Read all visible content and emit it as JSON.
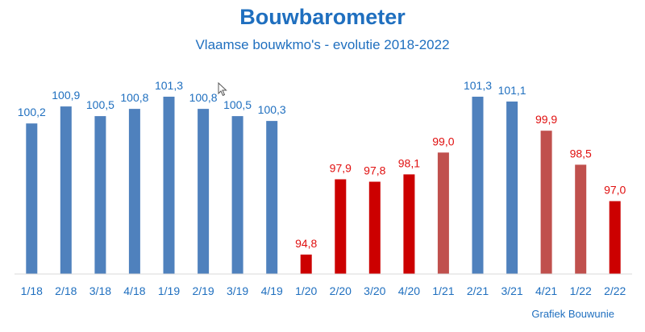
{
  "title": "Bouwbarometer",
  "subtitle": "Vlaamse bouwkmo's - evolutie 2018-2022",
  "credit": "Grafiek Bouwunie",
  "colors": {
    "blue": "#4f81bd",
    "red": "#cc0000",
    "muted_red": "#c0504d",
    "label_blue": "#1f6fbf",
    "label_red": "#e01010",
    "axis_label": "#1f6fbf"
  },
  "chart_data": {
    "type": "bar",
    "title": "Bouwbarometer",
    "subtitle": "Vlaamse bouwkmo's - evolutie 2018-2022",
    "categories": [
      "1/18",
      "2/18",
      "3/18",
      "4/18",
      "1/19",
      "2/19",
      "3/19",
      "4/19",
      "1/20",
      "2/20",
      "3/20",
      "4/20",
      "1/21",
      "2/21",
      "3/21",
      "4/21",
      "1/22",
      "2/22"
    ],
    "values": [
      100.2,
      100.9,
      100.5,
      100.8,
      101.3,
      100.8,
      100.5,
      100.3,
      94.8,
      97.9,
      97.8,
      98.1,
      99.0,
      101.3,
      101.1,
      99.9,
      98.5,
      97.0
    ],
    "labels": [
      "100,2",
      "100,9",
      "100,5",
      "100,8",
      "101,3",
      "100,8",
      "100,5",
      "100,3",
      "94,8",
      "97,9",
      "97,8",
      "98,1",
      "99,0",
      "101,3",
      "101,1",
      "99,9",
      "98,5",
      "97,0"
    ],
    "bar_colors": [
      "blue",
      "blue",
      "blue",
      "blue",
      "blue",
      "blue",
      "blue",
      "blue",
      "red",
      "red",
      "red",
      "red",
      "muted_red",
      "blue",
      "blue",
      "muted_red",
      "muted_red",
      "red"
    ],
    "ylim": [
      94.0,
      101.3
    ],
    "grid": false,
    "legend": "none"
  }
}
